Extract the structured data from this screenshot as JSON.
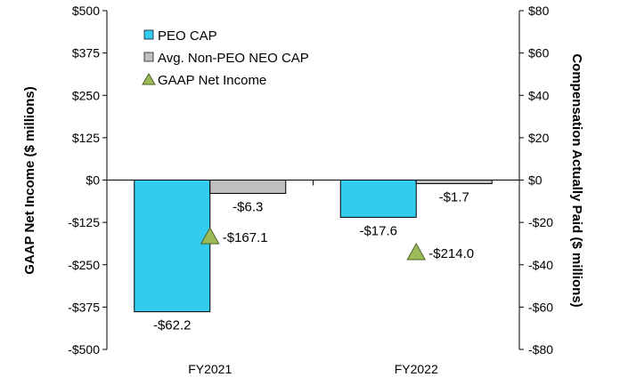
{
  "chart_data": {
    "type": "bar",
    "categories": [
      "FY2021",
      "FY2022"
    ],
    "series": [
      {
        "name": "PEO CAP",
        "axis": "right",
        "values": [
          -62.2,
          -17.6
        ],
        "labels": [
          "-$62.2",
          "-$17.6"
        ],
        "color": "#33CCEE"
      },
      {
        "name": "Avg. Non-PEO NEO CAP",
        "axis": "right",
        "values": [
          -6.3,
          -1.7
        ],
        "labels": [
          "-$6.3",
          "-$1.7"
        ],
        "color": "#BFBFBF"
      },
      {
        "name": "GAAP Net Income",
        "axis": "left",
        "marker": "triangle",
        "values": [
          -167.1,
          -214.0
        ],
        "labels": [
          "-$167.1",
          "-$214.0"
        ],
        "color": "#9BBB59"
      }
    ],
    "left_axis": {
      "label": "GAAP Net Income ($ millions)",
      "ylim": [
        -500,
        500
      ],
      "ticks": [
        500,
        375,
        250,
        125,
        0,
        -125,
        -250,
        -375,
        -500
      ],
      "tick_labels": [
        "$500",
        "$375",
        "$250",
        "$125",
        "$0",
        "-$125",
        "-$250",
        "-$375",
        "-$500"
      ]
    },
    "right_axis": {
      "label": "Compensation Actually Paid ($ millions)",
      "ylim": [
        -80,
        80
      ],
      "ticks": [
        80,
        60,
        40,
        20,
        0,
        -20,
        -40,
        -60,
        -80
      ],
      "tick_labels": [
        "$80",
        "$60",
        "$40",
        "$20",
        "$0",
        "-$20",
        "-$40",
        "-$60",
        "-$80"
      ]
    },
    "legend_position": "top-left",
    "grid": false
  }
}
